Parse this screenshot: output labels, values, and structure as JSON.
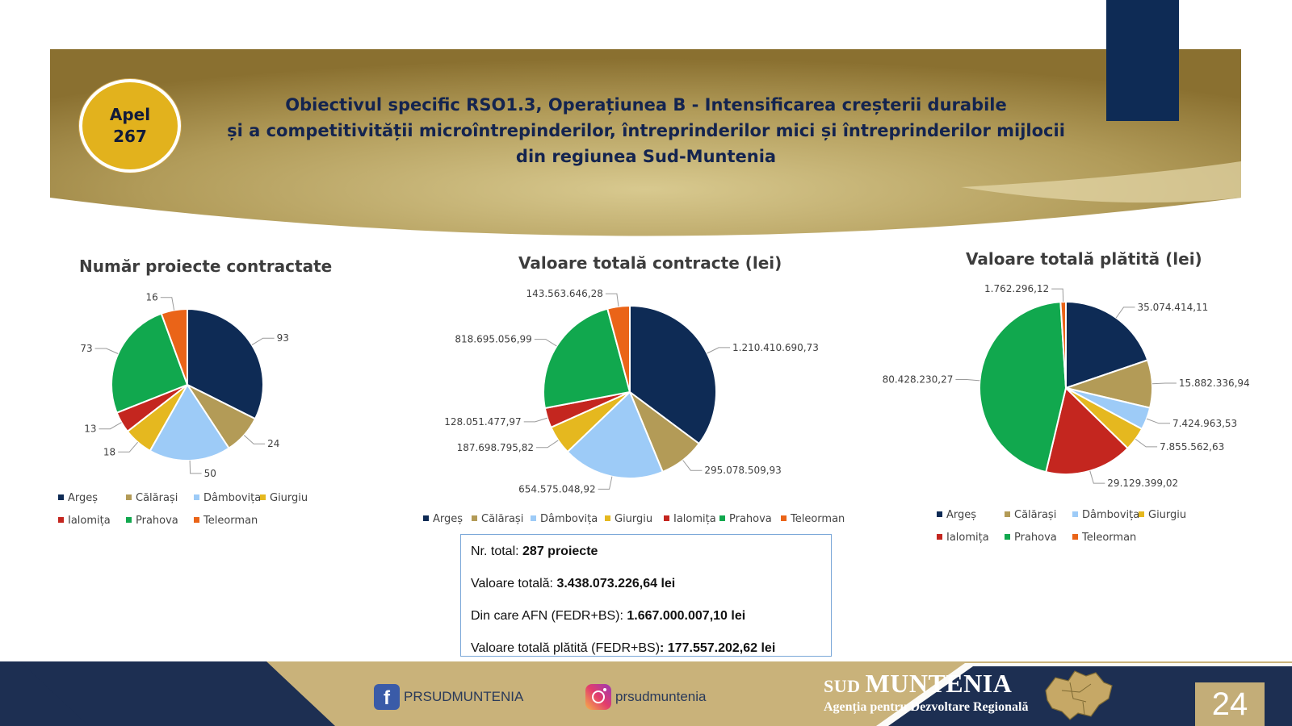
{
  "header": {
    "badge_line1": "Apel",
    "badge_line2": "267",
    "title_line1": "Obiectivul specific RSO1.3, Operațiunea B - Intensificarea creșterii durabile",
    "title_line2": "și a competitivității microîntrepinderilor, întreprinderilor mici și întreprinderilor mijlocii",
    "title_line3": "din regiunea Sud-Muntenia"
  },
  "colors": {
    "header_gold": "#9c8540",
    "navy": "#0e2b55",
    "badge_yellow": "#e2b21d",
    "title_navy": "#14244f"
  },
  "legend": [
    "Argeș",
    "Călărași",
    "Dâmbovița",
    "Giurgiu",
    "Ialomița",
    "Prahova",
    "Teleorman"
  ],
  "series_colors": [
    "#0e2b55",
    "#b39b57",
    "#9dcbf7",
    "#e5b81f",
    "#c4261f",
    "#11a84e",
    "#ea6418"
  ],
  "chart_data": [
    {
      "type": "pie",
      "title": "Număr proiecte contractate",
      "categories": [
        "Argeș",
        "Călărași",
        "Dâmbovița",
        "Giurgiu",
        "Ialomița",
        "Prahova",
        "Teleorman"
      ],
      "values": [
        93,
        24,
        50,
        18,
        13,
        73,
        16
      ],
      "labels": [
        "93",
        "24",
        "50",
        "18",
        "13",
        "73",
        "16"
      ],
      "legend_placement": "bottom"
    },
    {
      "type": "pie",
      "title": "Valoare totală contracte (lei)",
      "categories": [
        "Argeș",
        "Călărași",
        "Dâmbovița",
        "Giurgiu",
        "Ialomița",
        "Prahova",
        "Teleorman"
      ],
      "values": [
        1210410690.73,
        295078509.93,
        654575048.92,
        187698795.82,
        128051477.97,
        818695056.99,
        143563646.28
      ],
      "labels": [
        "1.210.410.690,73",
        "295.078.509,93",
        "654.575.048,92",
        "187.698.795,82",
        "128.051.477,97",
        "818.695.056,99",
        "143.563.646,28"
      ],
      "legend_placement": "bottom"
    },
    {
      "type": "pie",
      "title": "Valoare totală plătită (lei)",
      "categories": [
        "Argeș",
        "Călărași",
        "Dâmbovița",
        "Giurgiu",
        "Ialomița",
        "Prahova",
        "Teleorman"
      ],
      "values": [
        35074414.11,
        15882336.94,
        7424963.53,
        7855562.63,
        29129399.02,
        80428230.27,
        1762296.12
      ],
      "labels": [
        "35.074.414,11",
        "15.882.336,94",
        "7.424.963,53",
        "7.855.562,63",
        "29.129.399,02",
        "80.428.230,27",
        "1.762.296,12"
      ],
      "legend_placement": "bottom"
    }
  ],
  "summary": {
    "l1_prefix": "Nr. total: ",
    "l1_value": "287 proiecte",
    "l2_prefix": "Valoare totală: ",
    "l2_value": "3.438.073.226,64 lei",
    "l3_prefix": "Din care AFN (FEDR+BS): ",
    "l3_value": "1.667.000.007,10 lei",
    "l4_prefix": "Valoare totală plătită (FEDR+BS)",
    "l4_value": ": 177.557.202,62 lei"
  },
  "footer": {
    "facebook": "PRSUDMUNTENIA",
    "instagram": "prsudmuntenia",
    "brand_small": "SUD",
    "brand_big": "MUNTENIA",
    "brand_sub": "Agenția pentru Dezvoltare Regională",
    "page_number": "24"
  }
}
